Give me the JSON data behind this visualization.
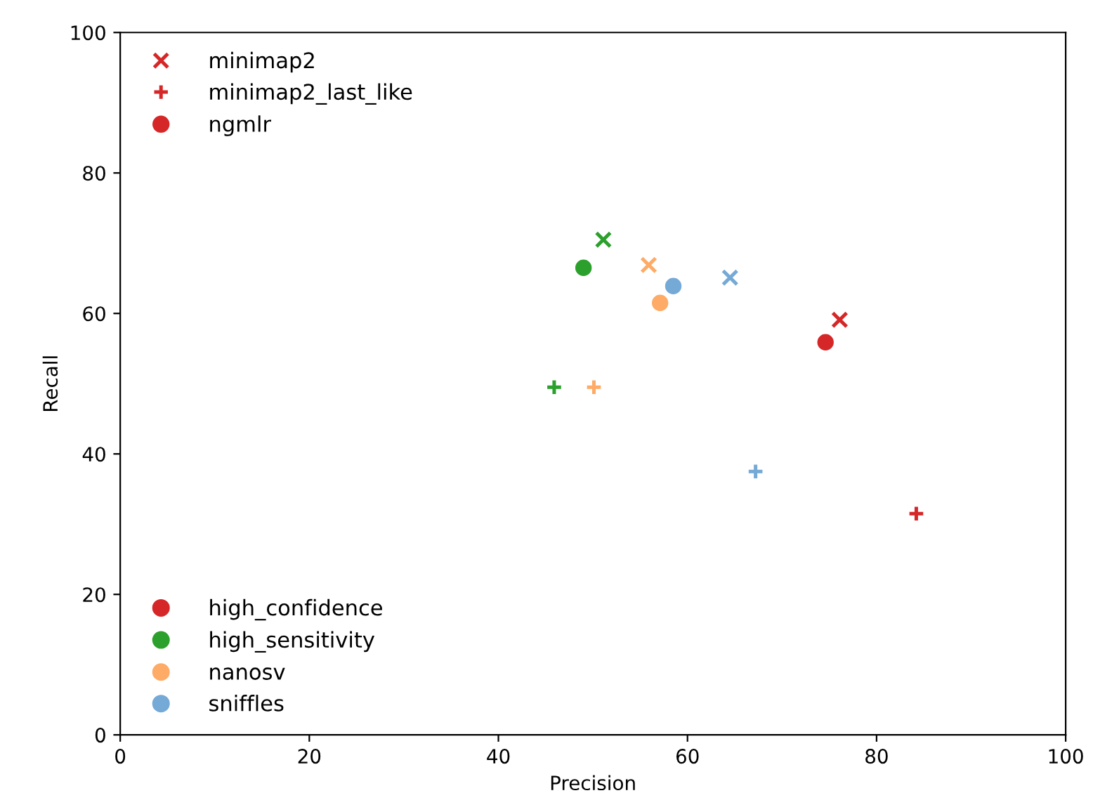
{
  "chart_data": {
    "type": "scatter",
    "xlabel": "Precision",
    "ylabel": "Recall",
    "xlim": [
      0,
      100
    ],
    "ylim": [
      0,
      100
    ],
    "xticks": [
      0,
      20,
      40,
      60,
      80,
      100
    ],
    "yticks": [
      0,
      20,
      40,
      60,
      80,
      100
    ],
    "legend": "left",
    "grid": false,
    "series": [
      {
        "name": "minimap2",
        "marker": "cross",
        "color": "#d62728",
        "colors": [
          "#d62728",
          "#2ca02c",
          "#fdab67",
          "#75a9d6"
        ],
        "x": [
          76.1,
          51.1,
          55.9,
          64.5
        ],
        "values": [
          59.1,
          70.5,
          66.9,
          65.1
        ]
      },
      {
        "name": "minimap2_last_like",
        "marker": "plus",
        "color": "#d62728",
        "colors": [
          "#d62728",
          "#2ca02c",
          "#fdab67",
          "#75a9d6"
        ],
        "x": [
          84.2,
          45.9,
          50.1,
          67.2
        ],
        "values": [
          31.5,
          49.5,
          49.5,
          37.5
        ]
      },
      {
        "name": "ngmlr",
        "marker": "circle",
        "color": "#d62728",
        "colors": [
          "#d62728",
          "#2ca02c",
          "#fdab67",
          "#75a9d6"
        ],
        "x": [
          74.6,
          49.0,
          57.1,
          58.5
        ],
        "values": [
          55.9,
          66.5,
          61.5,
          63.9
        ]
      },
      {
        "name": "high_confidence",
        "marker": "circle",
        "color": "#d62728"
      },
      {
        "name": "high_sensitivity",
        "marker": "circle",
        "color": "#2ca02c"
      },
      {
        "name": "nanosv",
        "marker": "circle",
        "color": "#fdab67"
      },
      {
        "name": "sniffles",
        "marker": "circle",
        "color": "#75a9d6"
      }
    ]
  }
}
